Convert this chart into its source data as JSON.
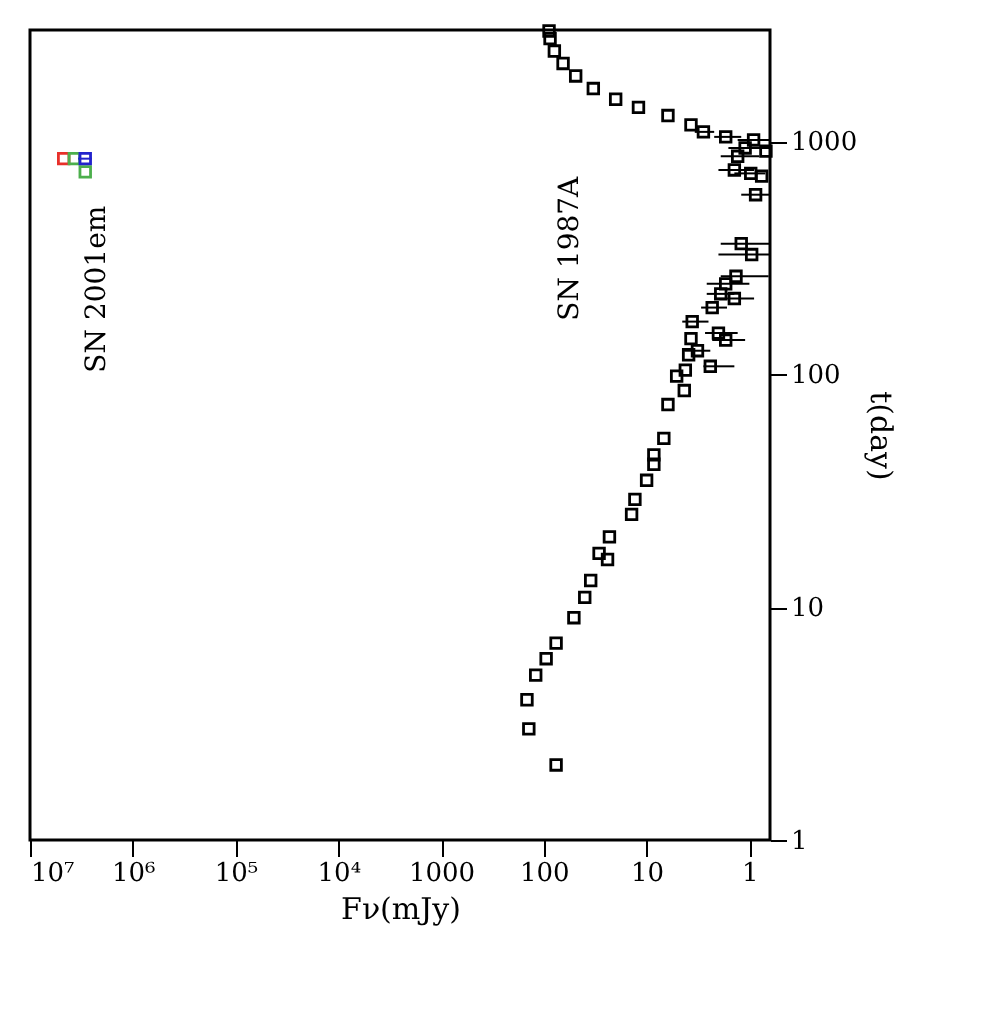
{
  "chart_data": {
    "type": "scatter",
    "xlabel": "Fν(mJy)",
    "ylabel": "t(day)",
    "xlim": [
      10000000,
      0.63
    ],
    "ylim": [
      1,
      3000
    ],
    "xticks": [
      {
        "value": 10000000,
        "label": "10⁷"
      },
      {
        "value": 1000000,
        "label": "10⁶"
      },
      {
        "value": 100000,
        "label": "10⁵"
      },
      {
        "value": 10000,
        "label": "10⁴"
      },
      1000,
      100,
      10,
      1
    ],
    "yticks": [
      1,
      10,
      100,
      1000
    ],
    "log": "xy",
    "grid": false,
    "marker": "square",
    "annotations": [
      "SN 2001em",
      "SN 1987A"
    ],
    "series": [
      {
        "color": "#000000",
        "x": [
          76,
          140,
          146,
          120,
          95,
          76,
          51,
          40,
          35,
          29,
          24,
          23,
          14,
          13,
          10,
          8.5,
          8.5,
          6.8,
          6.2,
          4.3,
          5.1,
          4.2,
          2.4,
          3.9,
          3.2,
          3.7,
          1.7,
          2.0,
          3.6,
          2.3,
          1.9,
          1.7,
          1.35,
          1.4,
          0.95,
          1.2,
          0.69,
          0.76,
          0.87,
          0.97,
          1.4,
          1.3,
          1.1,
          1.7,
          0.91,
          2.8,
          3.7,
          6.2,
          12,
          20,
          33,
          49,
          65,
          79,
          87,
          89
        ],
        "values": [
          2.1,
          3.0,
          4.0,
          5.1,
          6.0,
          7.0,
          9.0,
          11,
          13,
          17,
          16,
          20,
          25,
          29,
          35,
          41,
          45,
          53,
          74,
          85,
          98,
          104,
          108,
          121,
          126,
          142,
          140,
          150,
          168,
          193,
          221,
          244,
          263,
          211,
          326,
          363,
          906,
          708,
          589,
          727,
          752,
          861,
          935,
          1043,
          1012,
          1096,
          1175,
          1288,
          1397,
          1513,
          1682,
          1905,
          2155,
          2437,
          2754,
          2972
        ],
        "xerrors": [
          null,
          null,
          null,
          null,
          null,
          null,
          null,
          null,
          null,
          null,
          null,
          null,
          null,
          null,
          null,
          null,
          null,
          null,
          null,
          null,
          null,
          null,
          [
            1.4,
            2.8
          ],
          null,
          [
            2.4,
            4.3
          ],
          null,
          [
            1.1,
            2.3
          ],
          [
            1.3,
            2.7
          ],
          [
            2.5,
            4.5
          ],
          [
            1.65,
            2.95
          ],
          [
            1.4,
            2.6
          ],
          [
            1.0,
            2.6
          ],
          [
            0.65,
            1.9
          ],
          [
            0.9,
            2.2
          ],
          [
            0.63,
            2.0
          ],
          [
            0.63,
            1.9
          ],
          null,
          null,
          [
            0.63,
            1.2
          ],
          [
            0.7,
            1.4
          ],
          [
            0.9,
            2.0
          ],
          [
            0.8,
            1.9
          ],
          [
            0.63,
            1.6
          ],
          [
            1.2,
            2.2
          ],
          [
            0.63,
            1.3
          ],
          [
            2.2,
            3.4
          ],
          null,
          null,
          null,
          null,
          null,
          null,
          null,
          null,
          null,
          null
        ]
      },
      {
        "color": "#e8302a",
        "x": [
          4700000
        ],
        "values": [
          841
        ]
      },
      {
        "color": "#4caf4c",
        "x": [
          3700000,
          2900000
        ],
        "values": [
          841,
          738
        ]
      },
      {
        "color": "#2222cc",
        "x": [
          2900000
        ],
        "values": [
          841
        ],
        "xerrors": [
          [
            2500000,
            3400000
          ]
        ]
      }
    ]
  }
}
